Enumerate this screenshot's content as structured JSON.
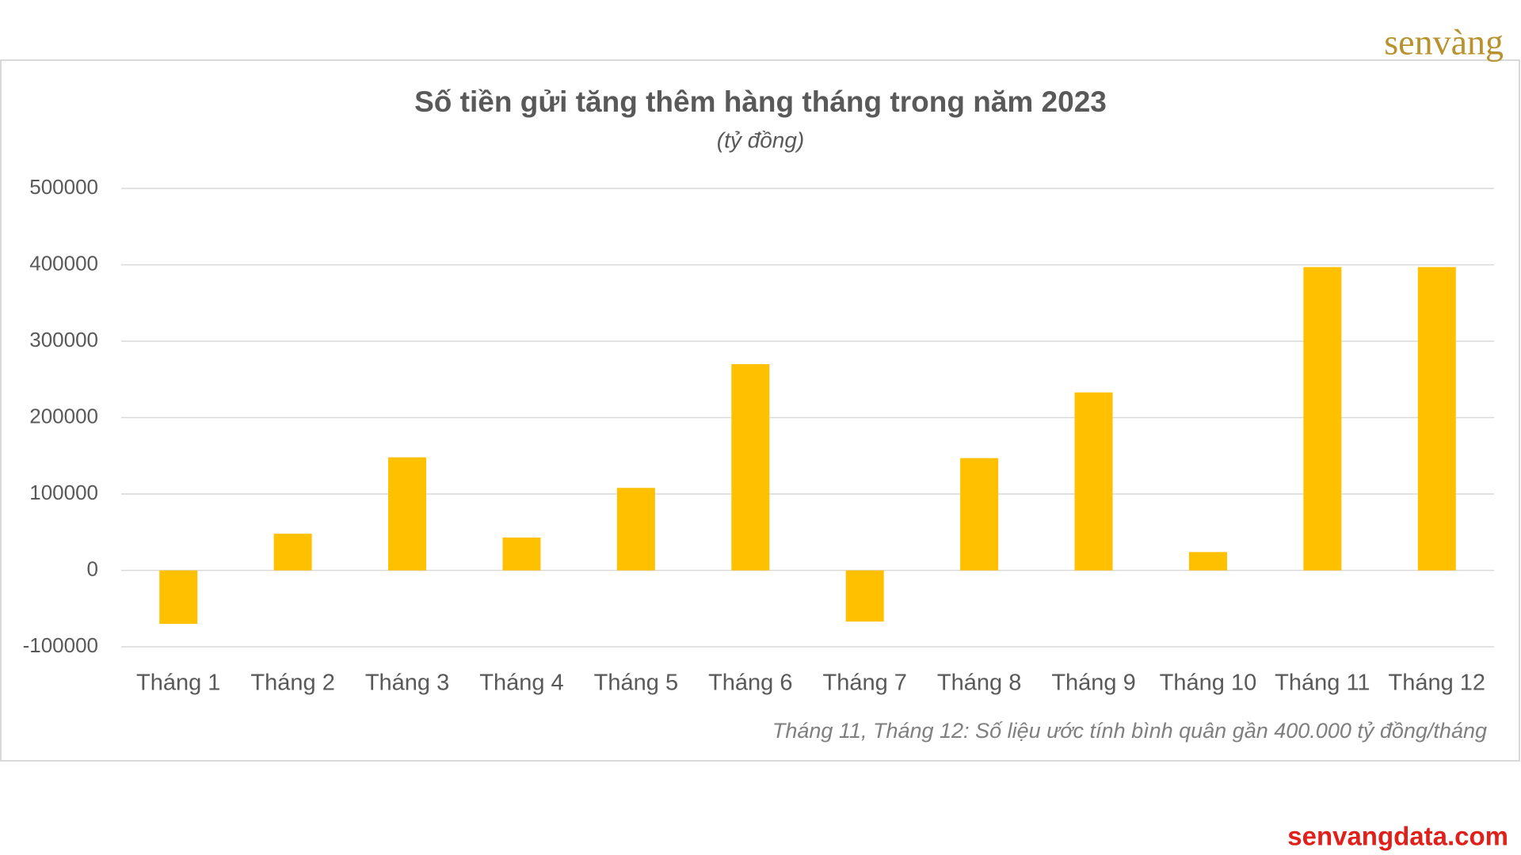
{
  "chart_data": {
    "type": "bar",
    "title": "Số tiền gửi tăng thêm hàng tháng trong năm 2023",
    "subtitle": "(tỷ đồng)",
    "categories": [
      "Tháng 1",
      "Tháng 2",
      "Tháng 3",
      "Tháng 4",
      "Tháng 5",
      "Tháng 6",
      "Tháng 7",
      "Tháng 8",
      "Tháng 9",
      "Tháng 10",
      "Tháng 11",
      "Tháng 12"
    ],
    "values": [
      -70000,
      48000,
      148000,
      43000,
      108000,
      270000,
      -67000,
      147000,
      233000,
      24000,
      397000,
      397000
    ],
    "color": "#ffc000",
    "ylim": [
      -100000,
      500000
    ],
    "yticks": [
      -100000,
      0,
      100000,
      200000,
      300000,
      400000,
      500000
    ],
    "grid": true,
    "annotation": "Tháng 11, Tháng 12: Số liệu ước tính bình quân gần 400.000 tỷ đồng/tháng"
  },
  "brand": {
    "logo": "senvàng",
    "website": "senvangdata.com"
  }
}
